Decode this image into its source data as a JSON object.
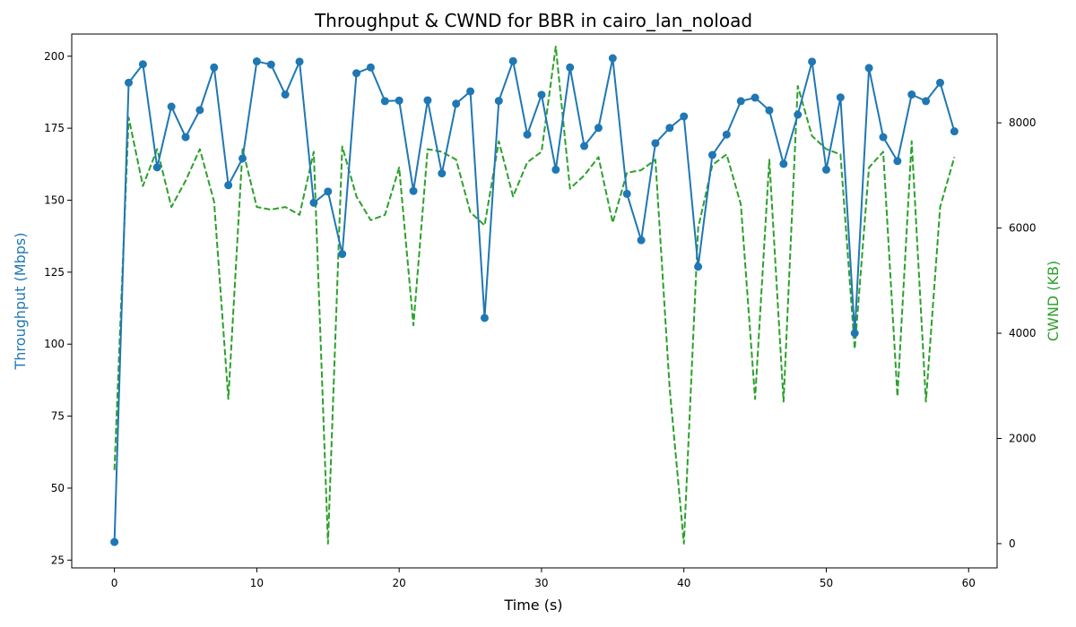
{
  "chart_data": {
    "type": "line",
    "title": "Throughput & CWND for BBR in cairo_lan_noload",
    "xlabel": "Time (s)",
    "ylabel_left": "Throughput (Mbps)",
    "ylabel_right": "CWND (KB)",
    "xlim": [
      -3,
      62
    ],
    "ylim_left": [
      22.3,
      207.7
    ],
    "ylim_right": [
      -461,
      9688
    ],
    "x_ticks": [
      0,
      10,
      20,
      30,
      40,
      50,
      60
    ],
    "y_left_ticks": [
      25,
      50,
      75,
      100,
      125,
      150,
      175,
      200
    ],
    "y_right_ticks": [
      0,
      2000,
      4000,
      6000,
      8000
    ],
    "grid": false,
    "colors": {
      "throughput": "#1f77b4",
      "cwnd": "#2ca02c",
      "frame": "#000000"
    },
    "x": [
      0,
      1,
      2,
      3,
      4,
      5,
      6,
      7,
      8,
      9,
      10,
      11,
      12,
      13,
      14,
      15,
      16,
      17,
      18,
      19,
      20,
      21,
      22,
      23,
      24,
      25,
      26,
      27,
      28,
      29,
      30,
      31,
      32,
      33,
      34,
      35,
      36,
      37,
      38,
      39,
      40,
      41,
      42,
      43,
      44,
      45,
      46,
      47,
      48,
      49,
      50,
      51,
      52,
      53,
      54,
      55,
      56,
      57,
      58,
      59
    ],
    "series": [
      {
        "axis": "left",
        "style": "solid-markers",
        "values": [
          31.3,
          190.8,
          197.2,
          161.4,
          182.5,
          171.9,
          181.3,
          196.1,
          155.2,
          164.5,
          198.2,
          197.1,
          186.7,
          198.1,
          149.1,
          153.0,
          131.3,
          194.1,
          196.1,
          184.4,
          184.6,
          153.2,
          184.7,
          159.3,
          183.5,
          187.8,
          109.1,
          184.5,
          198.3,
          172.8,
          186.6,
          160.6,
          196.1,
          168.8,
          175.1,
          199.3,
          152.2,
          136.1,
          169.8,
          175.1,
          179.1,
          126.9,
          165.7,
          172.8,
          184.4,
          185.6,
          181.2,
          162.6,
          179.7,
          198.1,
          160.6,
          185.7,
          103.8,
          195.9,
          171.9,
          163.6,
          186.7,
          184.4,
          190.8,
          173.9
        ]
      },
      {
        "axis": "right",
        "style": "dashed",
        "values": [
          1400,
          8100,
          6800,
          7500,
          6400,
          6900,
          7500,
          6500,
          2750,
          7500,
          6400,
          6350,
          6400,
          6250,
          7450,
          0,
          7550,
          6600,
          6150,
          6250,
          7150,
          4150,
          7500,
          7450,
          7300,
          6300,
          6050,
          7650,
          6600,
          7250,
          7450,
          9450,
          6750,
          7000,
          7350,
          6100,
          7050,
          7100,
          7300,
          2950,
          0,
          6000,
          7200,
          7400,
          6450,
          2750,
          7300,
          2700,
          8700,
          7750,
          7500,
          7400,
          3700,
          7150,
          7450,
          2800,
          7650,
          2700,
          6400,
          7350
        ]
      }
    ]
  }
}
